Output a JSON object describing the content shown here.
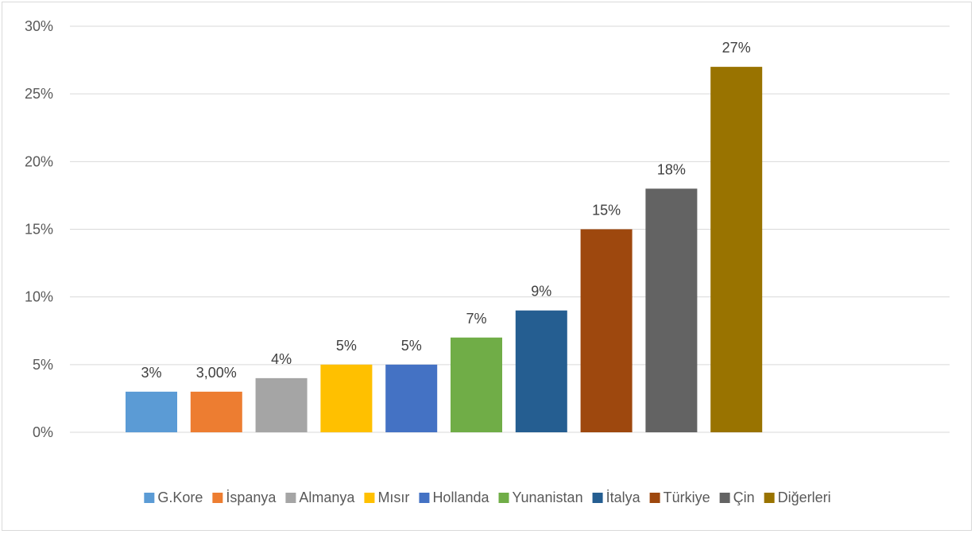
{
  "chart_data": {
    "type": "bar",
    "title": "",
    "xlabel": "",
    "ylabel": "",
    "categories": [
      "G.Kore",
      "İspanya",
      "Almanya",
      "Mısır",
      "Hollanda",
      "Yunanistan",
      "İtalya",
      "Türkiye",
      "Çin",
      "Diğerleri"
    ],
    "values": [
      3,
      3,
      4,
      5,
      5,
      7,
      9,
      15,
      18,
      27
    ],
    "data_labels": [
      "3%",
      "3,00%",
      "4%",
      "5%",
      "5%",
      "7%",
      "9%",
      "15%",
      "18%",
      "27%"
    ],
    "colors": [
      "#5b9bd5",
      "#ed7d31",
      "#a5a5a5",
      "#ffc000",
      "#4472c4",
      "#70ad47",
      "#255e91",
      "#9e480e",
      "#636363",
      "#997300"
    ],
    "ylim": [
      0,
      30
    ],
    "yticks": [
      0,
      5,
      10,
      15,
      20,
      25,
      30
    ],
    "ytick_labels": [
      "0%",
      "5%",
      "10%",
      "15%",
      "20%",
      "25%",
      "30%"
    ],
    "grid": true,
    "legend_position": "bottom"
  }
}
